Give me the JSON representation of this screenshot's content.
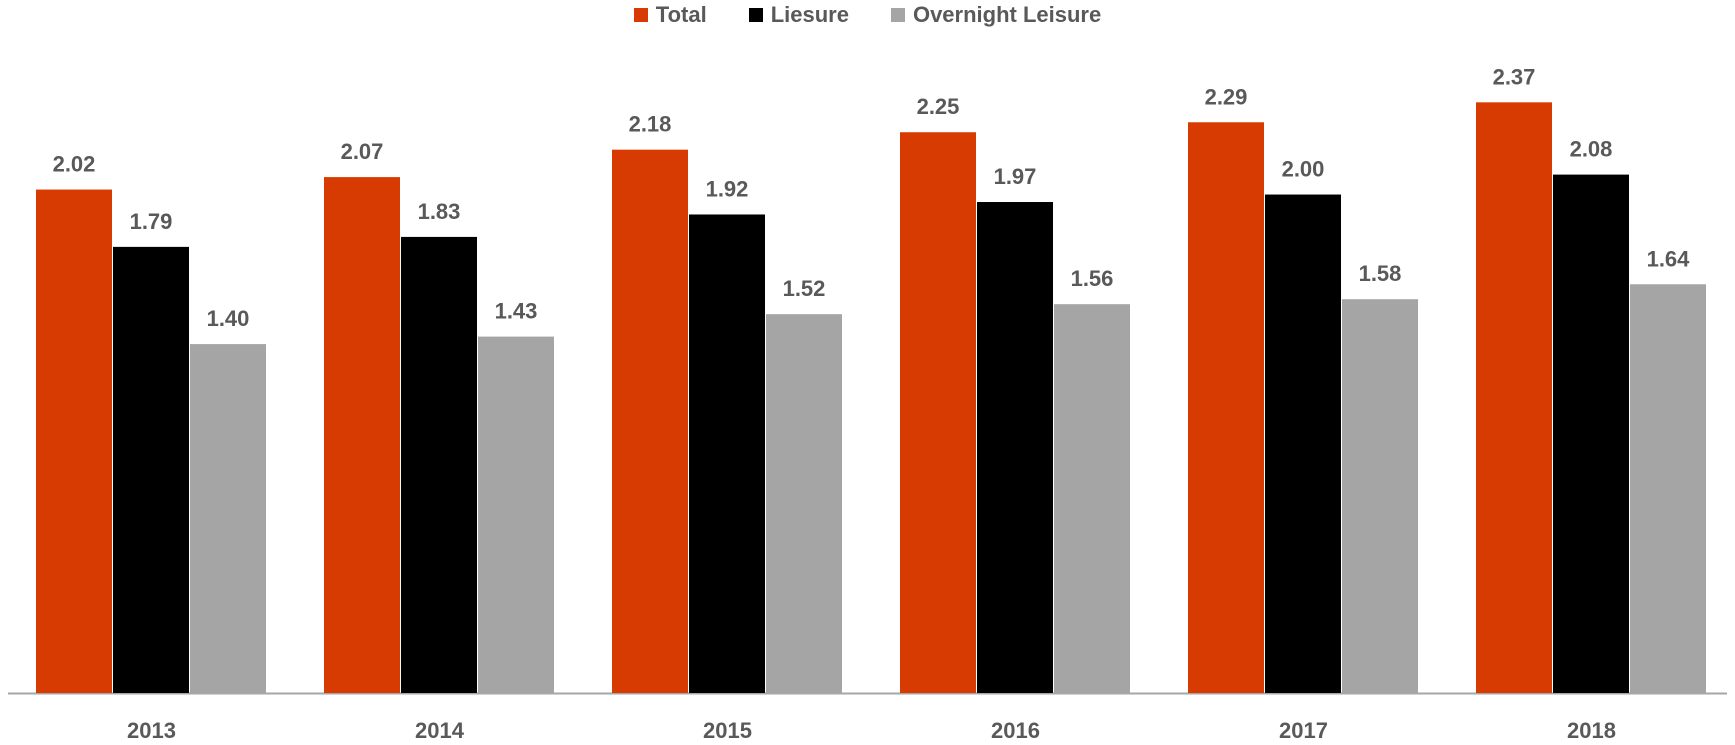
{
  "chart_data": {
    "type": "bar",
    "categories": [
      "2013",
      "2014",
      "2015",
      "2016",
      "2017",
      "2018"
    ],
    "series": [
      {
        "name": "Total",
        "color": "#D83B01",
        "values": [
          2.02,
          2.07,
          2.18,
          2.25,
          2.29,
          2.37
        ],
        "labels": [
          "2.02",
          "2.07",
          "2.18",
          "2.25",
          "2.29",
          "2.37"
        ]
      },
      {
        "name": "Liesure",
        "color": "#000000",
        "values": [
          1.79,
          1.83,
          1.92,
          1.97,
          2.0,
          2.08
        ],
        "labels": [
          "1.79",
          "1.83",
          "1.92",
          "1.97",
          "2.00",
          "2.08"
        ]
      },
      {
        "name": "Overnight Leisure",
        "color": "#A5A5A5",
        "values": [
          1.4,
          1.43,
          1.52,
          1.56,
          1.58,
          1.64
        ],
        "labels": [
          "1.40",
          "1.43",
          "1.52",
          "1.56",
          "1.58",
          "1.64"
        ]
      }
    ],
    "ylim": [
      0,
      2.6
    ],
    "grid": false,
    "legend_position": "top-center",
    "axis_line_color": "#A6A6A6",
    "label_color": "#595959"
  }
}
